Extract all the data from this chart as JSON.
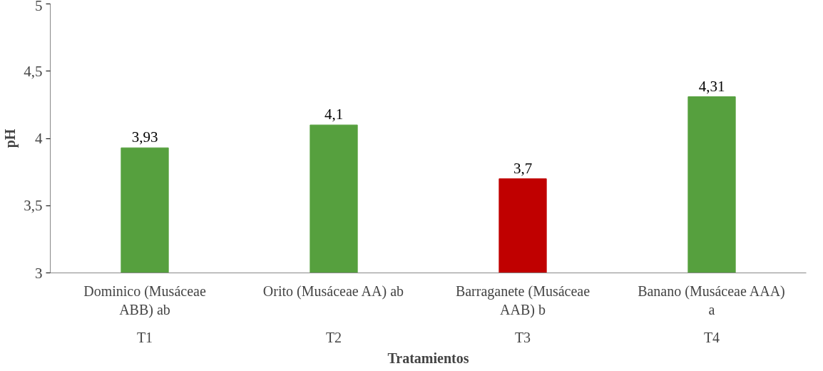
{
  "chart_data": {
    "type": "bar",
    "xlabel": "Tratamientos",
    "ylabel": "pH",
    "categories": [
      "Dominico (Musáceae ABB) ab",
      "Orito (Musáceae AA) ab",
      "Barraganete (Musáceae AAB) b",
      "Banano (Musáceae AAA) a"
    ],
    "annotations": [
      "T1",
      "T2",
      "T3",
      "T4"
    ],
    "values": [
      3.93,
      4.1,
      3.7,
      4.31
    ],
    "colors": [
      "#56a03e",
      "#56a03e",
      "#c00000",
      "#56a03e"
    ],
    "value_labels": [
      "3,93",
      "4,1",
      "3,7",
      "4,31"
    ],
    "ylim": [
      3,
      5
    ],
    "yticks": [
      3,
      {
        "value": 3.5,
        "label": "3,5"
      },
      4,
      {
        "value": 4.5,
        "label": "4,5"
      },
      5
    ],
    "grid": false
  }
}
